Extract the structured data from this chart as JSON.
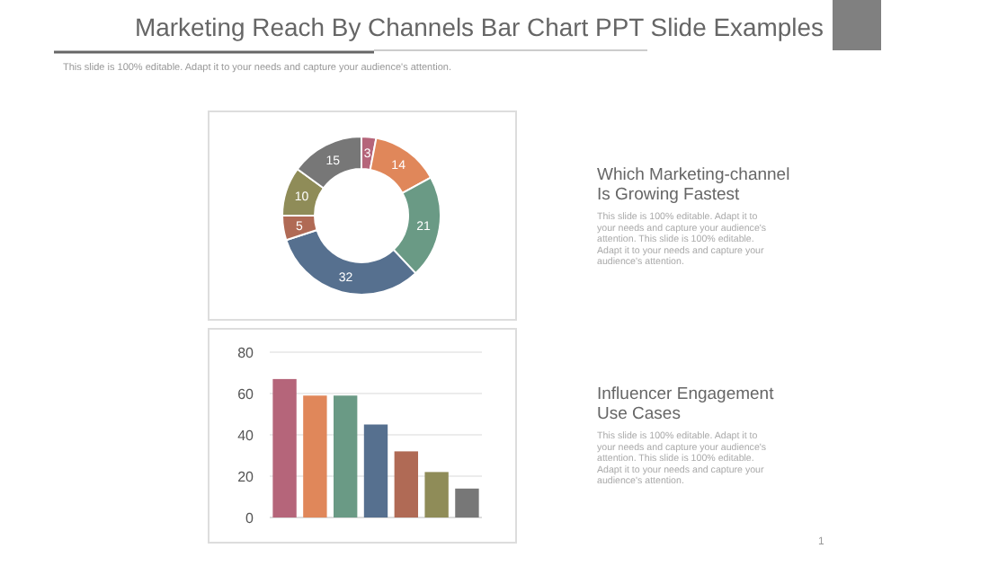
{
  "chart_data": [
    {
      "type": "other",
      "title": "Marketing Reach By Channels Bar Chart PPT Slide Examples",
      "subtitle": "This slide is 100% editable. Adapt it to your needs and capture your audience's attention.",
      "annotations": [
        "1"
      ]
    },
    {
      "type": "donut",
      "categories": [
        null,
        null,
        null,
        null,
        null,
        null,
        null
      ],
      "values": [
        3,
        14,
        21,
        32,
        5,
        10,
        15
      ],
      "colors": [
        "#b5657a",
        "#e0875a",
        "#6a9a85",
        "#56708f",
        "#b06a55",
        "#8f8c58",
        "#777777"
      ],
      "data_labels": true
    },
    {
      "type": "other",
      "title": "Which Marketing-channel Is Growing Fastest",
      "annotations": [
        "This slide is 100% editable. Adapt it to your needs and capture your audience's attention. This slide is 100% editable. Adapt it to your needs and capture your audience's attention."
      ]
    },
    {
      "type": "bar",
      "categories": [
        null,
        null,
        null,
        null,
        null,
        null,
        null
      ],
      "values": [
        67,
        59,
        59,
        45,
        32,
        22,
        14
      ],
      "colors": [
        "#b5657a",
        "#e0875a",
        "#6a9a85",
        "#56708f",
        "#b06a55",
        "#8f8c58",
        "#777777"
      ],
      "ylim": [
        0,
        80
      ],
      "yticks": [
        0,
        20,
        40,
        60,
        80
      ],
      "grid": "y"
    },
    {
      "type": "other",
      "title": "Influencer Engagement Use Cases",
      "annotations": [
        "This slide is 100% editable. Adapt it to your needs and capture your audience's attention. This slide is 100% editable. Adapt it to your needs and capture your audience's attention."
      ]
    }
  ]
}
